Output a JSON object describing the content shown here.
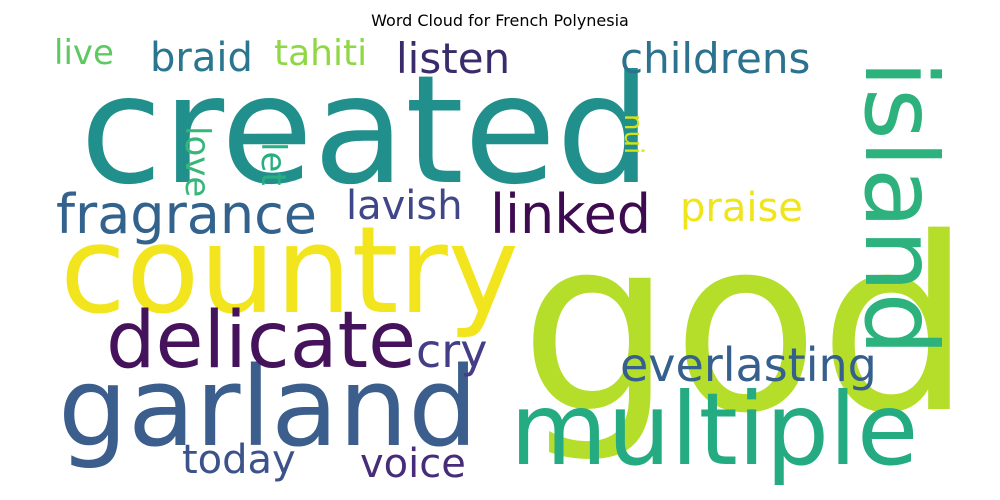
{
  "title": "Word Cloud for French Polynesia",
  "words": {
    "created": {
      "text": "created",
      "color": "#21908c"
    },
    "god": {
      "text": "god",
      "color": "#b5de2b"
    },
    "country": {
      "text": "country",
      "color": "#f2e51d"
    },
    "island": {
      "text": "island",
      "color": "#2db27d"
    },
    "garland": {
      "text": "garland",
      "color": "#3b5e8c"
    },
    "multiple": {
      "text": "multiple",
      "color": "#25ab82"
    },
    "delicate": {
      "text": "delicate",
      "color": "#45125c"
    },
    "fragrance": {
      "text": "fragrance",
      "color": "#33638d"
    },
    "linked": {
      "text": "linked",
      "color": "#3e0b51"
    },
    "lavish": {
      "text": "lavish",
      "color": "#3f4788"
    },
    "praise": {
      "text": "praise",
      "color": "#f0e51c"
    },
    "everlasting": {
      "text": "everlasting",
      "color": "#355f8d"
    },
    "cry": {
      "text": "cry",
      "color": "#433e85"
    },
    "today": {
      "text": "today",
      "color": "#3b528b"
    },
    "voice": {
      "text": "voice",
      "color": "#472c7a"
    },
    "childrens": {
      "text": "childrens",
      "color": "#2c728e"
    },
    "listen": {
      "text": "listen",
      "color": "#3a2c6b"
    },
    "braid": {
      "text": "braid",
      "color": "#2a768e"
    },
    "tahiti": {
      "text": "tahiti",
      "color": "#8fd744"
    },
    "live": {
      "text": "live",
      "color": "#5ec962"
    },
    "love": {
      "text": "love",
      "color": "#35b779"
    },
    "let": {
      "text": "let",
      "color": "#29af7f"
    },
    "nui": {
      "text": "nui",
      "color": "#d5e21a"
    }
  }
}
